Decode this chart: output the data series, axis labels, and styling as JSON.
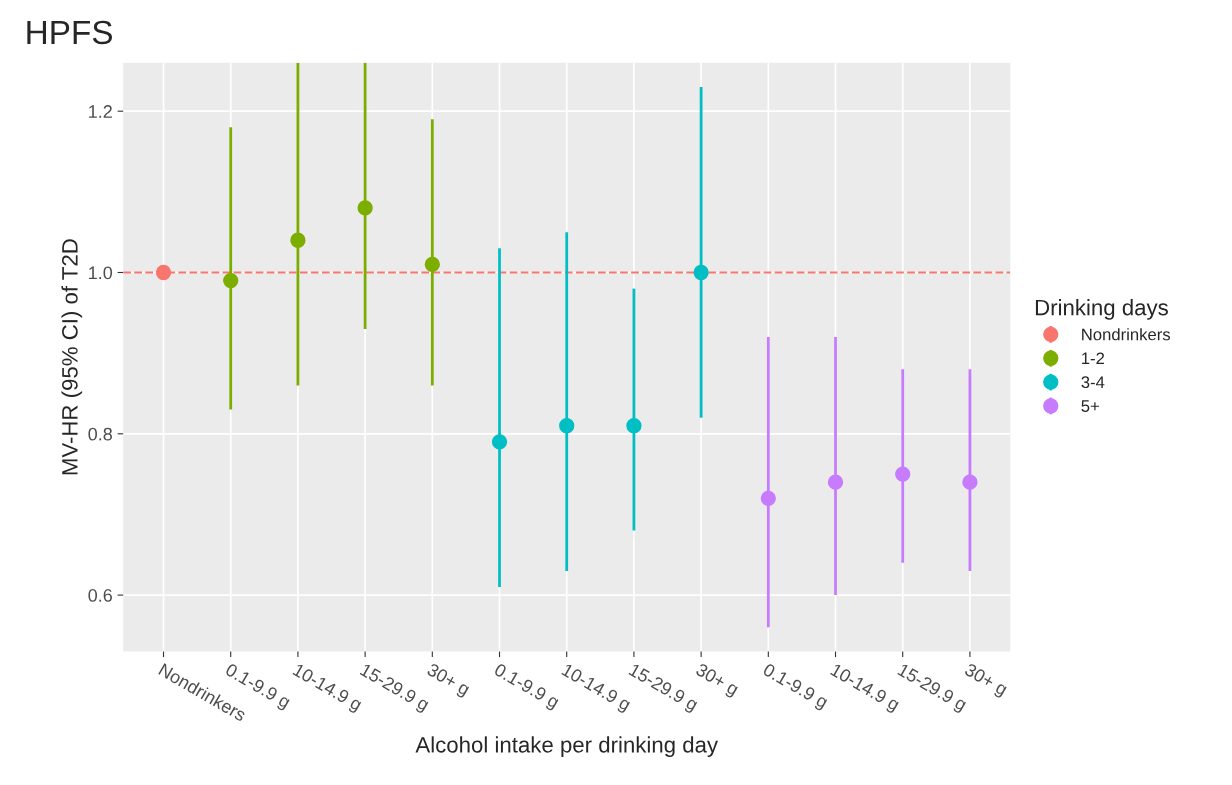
{
  "chart_data": {
    "type": "scatter",
    "title": "HPFS",
    "xlabel": "Alcohol intake per drinking day",
    "ylabel": "MV-HR (95% CI) of T2D",
    "legend_title": "Drinking days",
    "categories": [
      "Nondrinkers",
      "0.1-9.9 g",
      "10-14.9 g",
      "15-29.9 g",
      "30+ g",
      "0.1-9.9 g",
      "10-14.9 g",
      "15-29.9 g",
      "30+ g",
      "0.1-9.9 g",
      "10-14.9 g",
      "15-29.9 g",
      "30+ g"
    ],
    "series": [
      {
        "name": "Nondrinkers",
        "color": "#f8766d",
        "values": [
          1.0,
          null,
          null,
          null,
          null,
          null,
          null,
          null,
          null,
          null,
          null,
          null,
          null
        ],
        "errors": [
          null,
          null,
          null,
          null,
          null,
          null,
          null,
          null,
          null,
          null,
          null,
          null,
          null
        ]
      },
      {
        "name": "1-2",
        "color": "#7cae00",
        "values": [
          null,
          0.99,
          1.04,
          1.08,
          1.01,
          null,
          null,
          null,
          null,
          null,
          null,
          null,
          null
        ],
        "errors": [
          null,
          [
            0.83,
            1.18
          ],
          [
            0.86,
            1.26
          ],
          [
            0.93,
            1.26
          ],
          [
            0.86,
            1.19
          ],
          null,
          null,
          null,
          null,
          null,
          null,
          null,
          null
        ]
      },
      {
        "name": "3-4",
        "color": "#00bfc4",
        "values": [
          null,
          null,
          null,
          null,
          null,
          0.79,
          0.81,
          0.81,
          1.0,
          null,
          null,
          null,
          null
        ],
        "errors": [
          null,
          null,
          null,
          null,
          null,
          [
            0.61,
            1.03
          ],
          [
            0.63,
            1.05
          ],
          [
            0.68,
            0.98
          ],
          [
            0.82,
            1.23
          ],
          null,
          null,
          null,
          null
        ]
      },
      {
        "name": "5+",
        "color": "#c77cff",
        "values": [
          null,
          null,
          null,
          null,
          null,
          null,
          null,
          null,
          null,
          0.72,
          0.74,
          0.75,
          0.74
        ],
        "errors": [
          null,
          null,
          null,
          null,
          null,
          null,
          null,
          null,
          null,
          [
            0.56,
            0.92
          ],
          [
            0.6,
            0.92
          ],
          [
            0.64,
            0.88
          ],
          [
            0.63,
            0.88
          ]
        ]
      }
    ],
    "ylim": [
      0.53,
      1.26
    ],
    "yticks": [
      {
        "value": 0.6,
        "label": "0.6"
      },
      {
        "value": 0.8,
        "label": "0.8"
      },
      {
        "value": 1.0,
        "label": "1.0"
      },
      {
        "value": 1.2,
        "label": "1.2"
      }
    ],
    "ref_lines": [
      {
        "axis": "y",
        "value": 1.0,
        "color": "#f8766d",
        "line_style": "dashed"
      }
    ],
    "grid": true,
    "legend": "right",
    "marker": "circle"
  }
}
